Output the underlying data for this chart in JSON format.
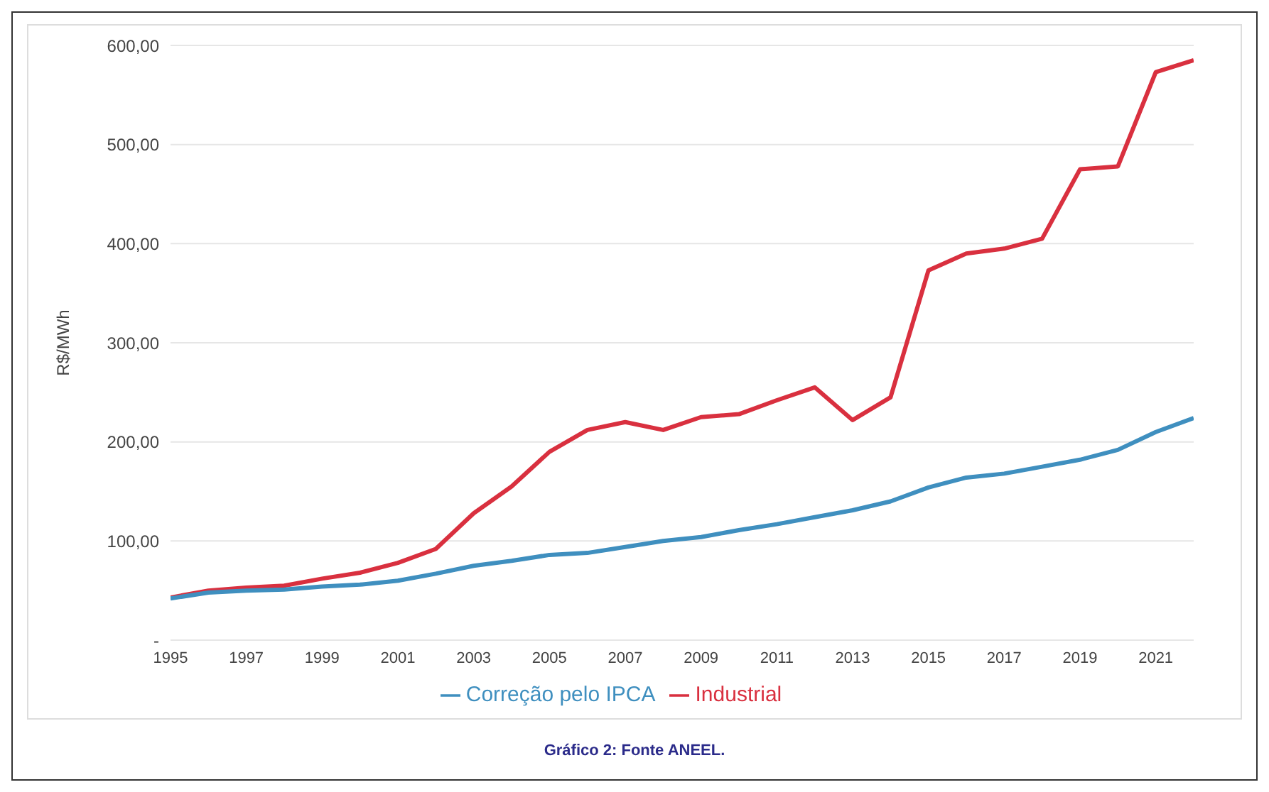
{
  "chart_data": {
    "type": "line",
    "ylabel": "R$/MWh",
    "annotations": [
      "Gráfico 2: Fonte ANEEL."
    ],
    "x": [
      1995,
      1996,
      1997,
      1998,
      1999,
      2000,
      2001,
      2002,
      2003,
      2004,
      2005,
      2006,
      2007,
      2008,
      2009,
      2010,
      2011,
      2012,
      2013,
      2014,
      2015,
      2016,
      2017,
      2018,
      2019,
      2020,
      2021,
      2022
    ],
    "series": [
      {
        "name": "Industrial",
        "color": "#d9303f",
        "values": [
          43,
          50,
          53,
          55,
          62,
          68,
          78,
          92,
          128,
          155,
          190,
          212,
          220,
          212,
          225,
          228,
          242,
          255,
          222,
          245,
          373,
          390,
          395,
          405,
          475,
          478,
          573,
          585
        ]
      },
      {
        "name": "Correção pelo IPCA",
        "color": "#3f8fbf",
        "values": [
          42,
          48,
          50,
          51,
          54,
          56,
          60,
          67,
          75,
          80,
          86,
          88,
          94,
          100,
          104,
          111,
          117,
          124,
          131,
          140,
          154,
          164,
          168,
          175,
          182,
          192,
          210,
          224
        ]
      }
    ],
    "xlim": [
      1995,
      2022
    ],
    "xticks": [
      1995,
      1997,
      1999,
      2001,
      2003,
      2005,
      2007,
      2009,
      2011,
      2013,
      2015,
      2017,
      2019,
      2021
    ],
    "ylim": [
      0,
      600
    ],
    "yticks": [
      {
        "value": 0,
        "label": "-"
      },
      {
        "value": 100,
        "label": "100,00"
      },
      {
        "value": 200,
        "label": "200,00"
      },
      {
        "value": 300,
        "label": "300,00"
      },
      {
        "value": 400,
        "label": "400,00"
      },
      {
        "value": 500,
        "label": "500,00"
      },
      {
        "value": 600,
        "label": "600,00"
      }
    ],
    "grid": "y",
    "legend": "bottom",
    "marker": "none",
    "line_style": "solid"
  }
}
